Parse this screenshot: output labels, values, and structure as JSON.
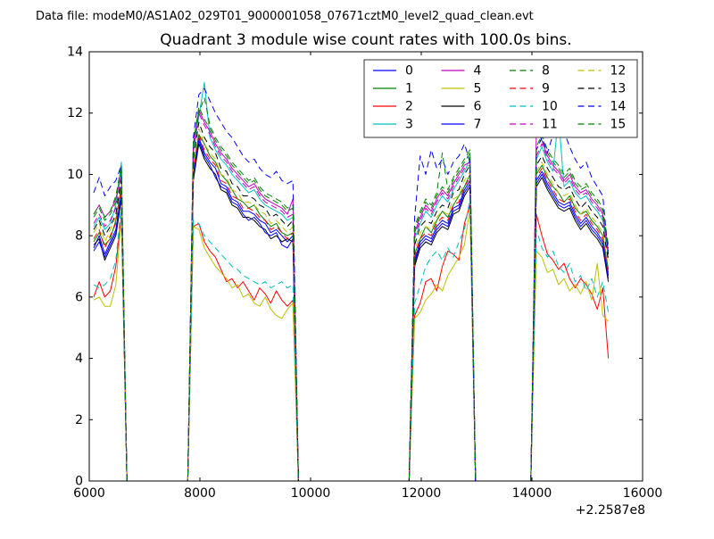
{
  "header": {
    "data_file_label": "Data file: modeM0/AS1A02_029T01_9000001058_07671cztM0_level2_quad_clean.evt"
  },
  "chart_data": {
    "type": "line",
    "title": "Quadrant 3 module wise count rates with 100.0s bins.",
    "xlabel": "",
    "ylabel": "",
    "grid": false,
    "legend": {
      "position": "upper center",
      "columns": 4,
      "rows": 4
    },
    "x_axis": {
      "lim": [
        6000,
        16000
      ],
      "ticks": [
        6000,
        8000,
        10000,
        12000,
        14000,
        16000
      ],
      "offset_label": "+2.2587e8"
    },
    "y_axis": {
      "lim": [
        0,
        14
      ],
      "ticks": [
        0,
        2,
        4,
        6,
        8,
        10,
        12,
        14
      ]
    },
    "x": [
      6080,
      6180,
      6280,
      6380,
      6480,
      6580,
      6680,
      7780,
      7880,
      7980,
      8080,
      8180,
      8280,
      8380,
      8480,
      8580,
      8680,
      8780,
      8880,
      8980,
      9080,
      9180,
      9280,
      9380,
      9480,
      9580,
      9680,
      9780,
      11780,
      11880,
      11980,
      12080,
      12180,
      12280,
      12380,
      12480,
      12580,
      12680,
      12780,
      12880,
      12980,
      13980,
      14080,
      14180,
      14280,
      14380,
      14480,
      14580,
      14680,
      14780,
      14880,
      14980,
      15080,
      15180,
      15280,
      15380
    ],
    "series": [
      {
        "name": "0",
        "color": "#0000ff",
        "linestyle": "solid",
        "y": [
          7.6,
          8.0,
          7.4,
          7.8,
          8.2,
          9.4,
          0,
          0,
          10.0,
          11.2,
          10.7,
          10.4,
          10.2,
          9.7,
          9.6,
          9.2,
          9.1,
          8.8,
          8.8,
          8.7,
          8.5,
          8.4,
          8.1,
          8.2,
          8.0,
          7.8,
          8.0,
          0,
          0,
          7.2,
          7.8,
          8.0,
          7.9,
          8.3,
          8.5,
          8.4,
          8.9,
          9.0,
          9.5,
          9.8,
          0,
          0,
          9.8,
          10.1,
          9.7,
          9.4,
          9.1,
          9.0,
          9.1,
          8.7,
          8.4,
          8.6,
          8.3,
          8.1,
          7.8,
          6.7
        ]
      },
      {
        "name": "1",
        "color": "#008000",
        "linestyle": "solid",
        "y": [
          7.8,
          8.1,
          7.7,
          7.9,
          8.5,
          9.6,
          0,
          0,
          10.2,
          11.3,
          11.0,
          10.6,
          10.4,
          10.0,
          9.8,
          9.5,
          9.2,
          9.1,
          8.9,
          9.0,
          8.7,
          8.5,
          8.3,
          8.4,
          8.1,
          8.0,
          8.1,
          0,
          0,
          7.4,
          7.9,
          8.3,
          8.1,
          8.5,
          8.8,
          8.6,
          9.0,
          9.3,
          9.6,
          10.0,
          0,
          0,
          10.0,
          10.3,
          9.9,
          9.6,
          9.4,
          9.1,
          9.3,
          8.9,
          8.7,
          8.8,
          8.5,
          8.3,
          8.0,
          6.9
        ]
      },
      {
        "name": "2",
        "color": "#ff0000",
        "linestyle": "solid",
        "y": [
          6.0,
          6.5,
          6.0,
          6.2,
          7.0,
          8.7,
          0,
          0,
          8.3,
          8.4,
          7.8,
          7.5,
          7.3,
          6.9,
          6.5,
          6.6,
          6.3,
          6.5,
          6.2,
          5.9,
          6.3,
          6.1,
          5.8,
          6.2,
          5.9,
          5.7,
          5.9,
          0,
          0,
          5.4,
          5.8,
          6.5,
          6.6,
          6.2,
          7.0,
          7.5,
          7.4,
          7.2,
          8.4,
          9.0,
          0,
          0,
          8.7,
          8.0,
          7.4,
          7.2,
          6.9,
          7.1,
          6.6,
          6.3,
          6.6,
          6.4,
          6.1,
          5.6,
          6.3,
          4.0
        ]
      },
      {
        "name": "3",
        "color": "#00bfbf",
        "linestyle": "solid",
        "y": [
          8.3,
          8.6,
          8.2,
          8.4,
          9.0,
          10.4,
          0,
          0,
          10.7,
          11.9,
          13.0,
          11.2,
          10.8,
          10.5,
          10.3,
          10.0,
          9.8,
          9.6,
          9.4,
          9.5,
          9.2,
          9.0,
          8.9,
          8.8,
          8.7,
          8.5,
          8.6,
          0,
          0,
          7.9,
          8.4,
          8.8,
          8.6,
          9.0,
          9.3,
          9.1,
          9.5,
          9.8,
          10.1,
          10.5,
          0,
          0,
          10.5,
          10.9,
          10.4,
          10.1,
          11.9,
          9.6,
          9.8,
          9.4,
          9.2,
          9.3,
          9.0,
          8.8,
          8.5,
          7.3
        ]
      },
      {
        "name": "4",
        "color": "#bf00bf",
        "linestyle": "solid",
        "y": [
          8.7,
          9.0,
          8.6,
          8.8,
          9.2,
          10.0,
          0,
          0,
          10.9,
          12.1,
          11.7,
          11.4,
          11.0,
          10.7,
          10.5,
          10.2,
          10.0,
          9.8,
          9.6,
          9.7,
          9.4,
          9.2,
          9.1,
          9.0,
          8.9,
          8.7,
          9.2,
          0,
          0,
          8.1,
          8.6,
          9.0,
          8.8,
          9.2,
          9.5,
          9.3,
          9.7,
          10.0,
          10.3,
          10.4,
          0,
          0,
          11.5,
          11.1,
          10.6,
          10.3,
          10.1,
          9.8,
          10.0,
          9.6,
          9.4,
          9.5,
          9.2,
          9.0,
          8.7,
          7.5
        ]
      },
      {
        "name": "5",
        "color": "#bfbf00",
        "linestyle": "solid",
        "y": [
          5.9,
          6.0,
          5.7,
          5.7,
          6.4,
          8.6,
          0,
          0,
          8.3,
          8.2,
          7.6,
          7.3,
          7.0,
          6.8,
          6.6,
          6.3,
          6.4,
          6.0,
          6.1,
          5.8,
          5.7,
          6.0,
          5.6,
          5.4,
          5.3,
          5.6,
          5.8,
          0,
          0,
          5.3,
          5.5,
          5.9,
          6.1,
          6.4,
          6.2,
          6.7,
          7.0,
          7.3,
          7.7,
          8.9,
          0,
          0,
          7.5,
          7.3,
          6.8,
          6.9,
          6.4,
          6.6,
          6.2,
          6.4,
          6.1,
          6.5,
          5.9,
          7.1,
          5.4,
          5.2
        ]
      },
      {
        "name": "6",
        "color": "#000000",
        "linestyle": "solid",
        "y": [
          7.7,
          7.9,
          7.2,
          7.6,
          8.0,
          9.2,
          0,
          0,
          9.8,
          11.0,
          10.5,
          10.2,
          10.0,
          9.5,
          9.4,
          9.0,
          8.9,
          8.6,
          8.6,
          8.5,
          8.3,
          8.2,
          7.9,
          8.0,
          7.8,
          7.9,
          7.8,
          0,
          0,
          7.0,
          7.6,
          7.8,
          7.7,
          8.1,
          8.3,
          8.2,
          8.7,
          8.8,
          9.3,
          9.6,
          0,
          0,
          9.6,
          9.9,
          9.5,
          9.2,
          8.9,
          8.8,
          8.9,
          8.5,
          8.2,
          8.4,
          8.1,
          7.9,
          7.6,
          6.5
        ]
      },
      {
        "name": "7",
        "color": "#0000ff",
        "linestyle": "solid",
        "y": [
          7.5,
          7.8,
          7.3,
          7.7,
          8.1,
          9.3,
          0,
          0,
          9.9,
          11.1,
          10.6,
          10.3,
          9.9,
          9.6,
          9.5,
          9.1,
          9.0,
          8.7,
          8.5,
          8.6,
          8.4,
          8.1,
          8.0,
          8.1,
          7.7,
          7.6,
          7.9,
          0,
          0,
          7.1,
          7.7,
          7.9,
          7.8,
          8.2,
          8.4,
          8.3,
          8.8,
          8.9,
          9.4,
          9.7,
          0,
          0,
          9.7,
          10.0,
          9.6,
          9.3,
          9.0,
          8.9,
          9.0,
          8.6,
          8.3,
          8.5,
          8.2,
          8.0,
          7.7,
          6.6
        ]
      },
      {
        "name": "8",
        "color": "#008000",
        "linestyle": "dashed",
        "y": [
          8.6,
          8.9,
          8.5,
          8.7,
          9.1,
          10.2,
          0,
          0,
          11.0,
          12.2,
          11.8,
          11.5,
          11.1,
          10.8,
          10.6,
          10.3,
          10.1,
          9.9,
          9.7,
          9.8,
          9.5,
          9.3,
          9.2,
          9.1,
          9.0,
          8.8,
          8.9,
          0,
          0,
          8.2,
          8.7,
          9.1,
          8.9,
          9.3,
          9.6,
          9.4,
          9.8,
          10.1,
          10.4,
          10.7,
          0,
          0,
          10.8,
          11.2,
          10.7,
          10.4,
          10.2,
          9.9,
          10.1,
          9.7,
          9.5,
          9.6,
          9.3,
          9.1,
          8.8,
          7.6
        ]
      },
      {
        "name": "9",
        "color": "#ff0000",
        "linestyle": "dashed",
        "y": [
          7.9,
          8.2,
          7.6,
          8.0,
          8.4,
          9.5,
          0,
          0,
          10.1,
          11.3,
          10.8,
          10.5,
          10.3,
          9.8,
          9.7,
          9.3,
          9.2,
          8.9,
          8.9,
          8.8,
          8.6,
          8.5,
          8.2,
          8.3,
          8.1,
          7.9,
          8.1,
          0,
          0,
          7.3,
          7.9,
          8.1,
          8.0,
          8.4,
          8.6,
          8.5,
          9.0,
          9.1,
          9.6,
          9.9,
          0,
          0,
          9.9,
          10.2,
          9.8,
          9.5,
          9.2,
          9.1,
          9.2,
          8.8,
          8.5,
          8.7,
          8.4,
          8.2,
          7.9,
          6.8
        ]
      },
      {
        "name": "10",
        "color": "#00bfbf",
        "linestyle": "dashed",
        "y": [
          6.4,
          6.3,
          6.4,
          6.6,
          7.2,
          9.0,
          0,
          0,
          8.5,
          8.4,
          8.0,
          7.8,
          7.6,
          7.4,
          7.2,
          7.0,
          6.9,
          6.7,
          6.6,
          6.5,
          6.4,
          6.5,
          6.3,
          6.4,
          6.5,
          6.3,
          6.4,
          0,
          0,
          5.8,
          6.4,
          7.0,
          7.3,
          7.5,
          7.2,
          7.6,
          7.3,
          7.8,
          8.2,
          9.2,
          0,
          0,
          8.2,
          7.6,
          7.3,
          7.5,
          7.0,
          6.8,
          7.1,
          6.5,
          6.7,
          6.2,
          6.6,
          6.0,
          6.5,
          5.5
        ]
      },
      {
        "name": "11",
        "color": "#bf00bf",
        "linestyle": "dashed",
        "y": [
          8.4,
          8.7,
          8.3,
          8.5,
          8.9,
          9.9,
          0,
          0,
          10.8,
          12.0,
          11.6,
          11.3,
          10.9,
          10.6,
          10.4,
          10.1,
          9.9,
          9.7,
          9.5,
          9.6,
          9.3,
          9.1,
          9.0,
          8.9,
          8.8,
          8.6,
          8.7,
          0,
          0,
          8.0,
          8.5,
          8.9,
          8.7,
          9.1,
          9.4,
          9.2,
          9.6,
          9.9,
          10.2,
          10.3,
          0,
          0,
          10.6,
          11.0,
          10.5,
          10.2,
          10.0,
          9.7,
          9.9,
          9.5,
          9.3,
          9.4,
          9.1,
          8.9,
          8.6,
          7.4
        ]
      },
      {
        "name": "12",
        "color": "#bfbf00",
        "linestyle": "dashed",
        "y": [
          8.1,
          8.4,
          7.8,
          8.2,
          8.6,
          9.7,
          0,
          0,
          10.3,
          11.5,
          11.0,
          10.7,
          10.5,
          10.0,
          9.9,
          9.5,
          9.4,
          9.1,
          9.1,
          9.0,
          8.8,
          8.7,
          8.4,
          8.5,
          8.3,
          8.1,
          8.3,
          0,
          0,
          7.5,
          8.1,
          8.3,
          8.2,
          8.6,
          8.8,
          8.7,
          9.2,
          9.3,
          9.8,
          10.1,
          0,
          0,
          10.1,
          10.4,
          10.0,
          9.7,
          9.4,
          9.3,
          9.4,
          9.0,
          8.7,
          8.9,
          8.6,
          8.4,
          8.1,
          7.0
        ]
      },
      {
        "name": "13",
        "color": "#000000",
        "linestyle": "dashed",
        "y": [
          8.2,
          8.5,
          8.0,
          8.3,
          8.7,
          9.8,
          0,
          0,
          10.5,
          11.7,
          11.2,
          10.9,
          10.7,
          10.2,
          10.1,
          9.7,
          9.6,
          9.3,
          9.3,
          9.2,
          9.0,
          8.9,
          8.6,
          8.7,
          8.5,
          8.3,
          8.5,
          0,
          0,
          7.7,
          8.3,
          8.5,
          8.4,
          8.8,
          9.0,
          8.9,
          9.4,
          9.5,
          10.0,
          10.3,
          0,
          0,
          10.3,
          10.6,
          10.2,
          9.9,
          9.6,
          9.5,
          9.6,
          9.2,
          8.9,
          9.1,
          8.8,
          8.6,
          8.3,
          7.2
        ]
      },
      {
        "name": "14",
        "color": "#0000ff",
        "linestyle": "dashed",
        "y": [
          9.4,
          9.9,
          9.3,
          9.6,
          9.8,
          10.3,
          0,
          0,
          11.2,
          12.6,
          12.8,
          12.4,
          12.0,
          11.7,
          11.4,
          11.2,
          10.9,
          10.6,
          10.4,
          10.5,
          10.2,
          10.0,
          9.9,
          10.1,
          9.8,
          9.7,
          9.8,
          0,
          0,
          8.6,
          10.6,
          10.0,
          10.8,
          10.2,
          10.5,
          10.0,
          10.4,
          10.6,
          11.0,
          10.4,
          0,
          0,
          10.8,
          11.2,
          10.7,
          11.3,
          12.2,
          11.4,
          10.9,
          10.5,
          10.2,
          10.4,
          9.9,
          9.6,
          9.3,
          7.4
        ]
      },
      {
        "name": "15",
        "color": "#008000",
        "linestyle": "dashed",
        "y": [
          8.7,
          9.0,
          8.6,
          8.8,
          9.3,
          10.3,
          0,
          0,
          11.1,
          12.0,
          12.5,
          11.6,
          11.2,
          10.9,
          10.7,
          10.4,
          10.2,
          10.0,
          9.8,
          9.9,
          9.6,
          9.4,
          9.3,
          9.2,
          9.1,
          8.9,
          9.0,
          0,
          0,
          8.3,
          8.8,
          9.2,
          9.0,
          9.4,
          10.7,
          9.5,
          9.9,
          10.2,
          10.5,
          10.8,
          0,
          0,
          10.9,
          11.3,
          10.8,
          10.5,
          10.3,
          10.0,
          10.2,
          9.8,
          9.6,
          9.7,
          9.4,
          9.2,
          8.9,
          7.7
        ]
      }
    ]
  }
}
